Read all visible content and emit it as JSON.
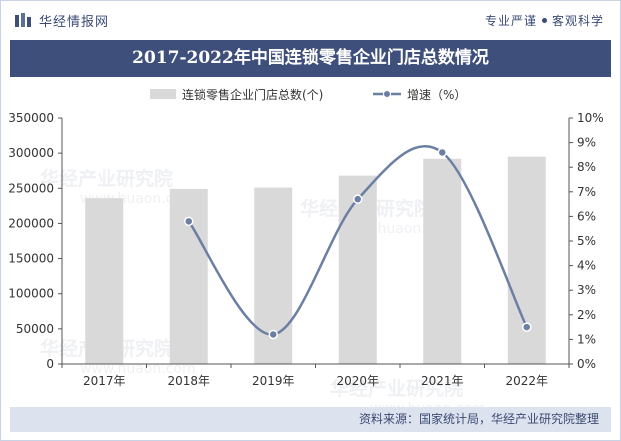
{
  "header": {
    "brand": "华经情报网",
    "slogan_left": "专业严谨",
    "slogan_right": "客观科学",
    "title": "2017-2022年中国连锁零售企业门店总数情况"
  },
  "footer": {
    "source": "资料来源：国家统计局，华经产业研究院整理"
  },
  "watermark": {
    "cn": "华经产业研究院",
    "url": "www.huaon.com"
  },
  "colors": {
    "bar": "#d9d9d9",
    "line": "#6b7fa3",
    "brand": "#3e4f7b"
  },
  "chart_data": {
    "type": "bar",
    "categories": [
      "2017年",
      "2018年",
      "2019年",
      "2020年",
      "2021年",
      "2022年"
    ],
    "series": [
      {
        "name": "连锁零售企业门店总数(个)",
        "type": "bar",
        "axis": "left",
        "values": [
          236000,
          249000,
          251000,
          268000,
          292000,
          295000
        ]
      },
      {
        "name": "增速（%）",
        "type": "line",
        "axis": "right",
        "smooth": true,
        "values": [
          null,
          5.8,
          1.2,
          6.7,
          8.6,
          1.5
        ]
      }
    ],
    "y_left": {
      "min": 0,
      "max": 350000,
      "step": 50000
    },
    "y_right": {
      "min": 0,
      "max": 10,
      "step": 1,
      "suffix": "%"
    },
    "legend_position": "top"
  }
}
